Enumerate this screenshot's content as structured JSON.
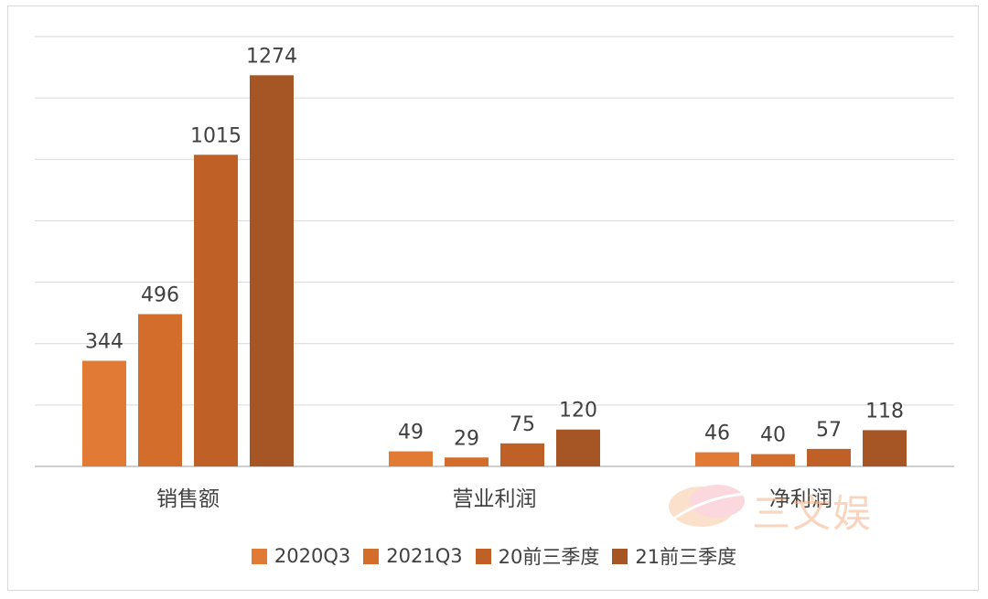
{
  "chart_data": {
    "type": "bar",
    "categories": [
      "销售额",
      "营业利润",
      "净利润"
    ],
    "series": [
      {
        "name": "2020Q3",
        "values": [
          344,
          49,
          46
        ],
        "color": "#e07a35"
      },
      {
        "name": "2021Q3",
        "values": [
          496,
          29,
          40
        ],
        "color": "#d36d2c"
      },
      {
        "name": "20前三季度",
        "values": [
          1015,
          75,
          57
        ],
        "color": "#bf6127"
      },
      {
        "name": "21前三季度",
        "values": [
          1274,
          120,
          118
        ],
        "color": "#a65524"
      }
    ],
    "ylim": [
      0,
      1400
    ],
    "grid": true,
    "legend_position": "bottom",
    "data_labels": true
  },
  "watermark": {
    "text": "三文娱"
  }
}
